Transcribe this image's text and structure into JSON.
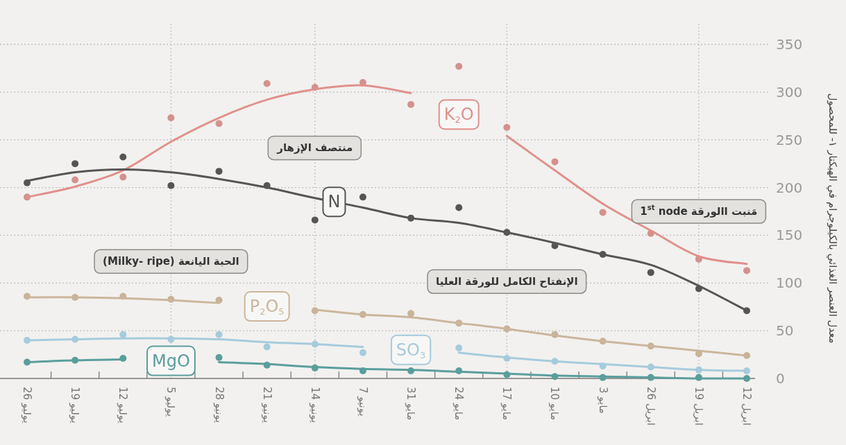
{
  "chart_data": {
    "type": "line",
    "ylabel": "معدل العنصر الغذائي بالكيلوجرام في الهيكتار ١- للمحصول",
    "categories": [
      "26 يوليو",
      "19 يوليو",
      "12 يوليو",
      "5 يوليو",
      "28 يونيو",
      "21 يونيو",
      "14 يونيو",
      "7 يونيو",
      "31 مايو",
      "24 مايو",
      "17 مايو",
      "10 مايو",
      "3 مايو",
      "26 ابريل",
      "19 ابريل",
      "12 ابريل"
    ],
    "ylim": [
      0,
      350
    ],
    "yticks": [
      0,
      50,
      100,
      150,
      200,
      250,
      300,
      350
    ],
    "grid": "y",
    "series": [
      {
        "type": "scatter",
        "color": "#d4918e",
        "values": [
          190,
          208,
          211,
          273,
          267,
          309,
          305,
          310,
          287,
          327,
          263,
          227,
          174,
          152,
          125,
          113
        ]
      },
      {
        "type": "scatter",
        "color": "#555553",
        "values": [
          205,
          225,
          232,
          202,
          217,
          202,
          166,
          190,
          168,
          179,
          153,
          139,
          130,
          111,
          94,
          71
        ]
      },
      {
        "type": "scatter",
        "color": "#c8b298",
        "values": [
          86,
          85,
          86,
          83,
          82,
          null,
          71,
          67,
          68,
          58,
          52,
          46,
          39,
          34,
          26,
          24
        ]
      },
      {
        "type": "scatter",
        "color": "#a6cbdc",
        "values": [
          40,
          41,
          46,
          41,
          46,
          33,
          36,
          27,
          null,
          32,
          21,
          18,
          13,
          12,
          9,
          8
        ]
      },
      {
        "type": "scatter",
        "color": "#5a9e9c",
        "values": [
          17,
          19,
          21,
          null,
          22,
          14,
          11,
          8,
          8,
          8,
          4,
          2,
          1,
          1,
          1,
          0
        ]
      },
      {
        "name": "K$_{2}$O",
        "color": "#e0908c",
        "values": [
          190,
          201,
          218,
          248,
          273,
          292,
          303,
          307,
          299,
          null,
          254,
          218,
          183,
          155,
          128,
          120
        ]
      },
      {
        "name": "N",
        "color": "#555553",
        "values": [
          207,
          216,
          219,
          216,
          209,
          200,
          189,
          179,
          168,
          163,
          153,
          142,
          130,
          119,
          97,
          71
        ]
      },
      {
        "name": "P$_{2}$O$_{5}$",
        "color": "#cbb69c",
        "values": [
          85,
          85,
          84,
          82,
          79,
          null,
          72,
          67,
          64,
          58,
          52,
          45,
          39,
          34,
          29,
          24
        ]
      },
      {
        "name": "SO$_{3}$",
        "color": "#a6cbdc",
        "values": [
          40,
          41,
          42,
          42,
          41,
          38,
          36,
          33,
          null,
          27,
          22,
          18,
          15,
          12,
          9,
          8
        ]
      },
      {
        "name": "MgO",
        "color": "#5a9e9c",
        "values": [
          17,
          19,
          20,
          null,
          17,
          15,
          12,
          10,
          9,
          7,
          5,
          3,
          2,
          1,
          0,
          0
        ]
      }
    ],
    "ref_lines": [
      {
        "axis": "x",
        "value": "5 يوليو",
        "label": "الحبة اليانعة (Milky- ripe)",
        "color": "#c8c8c8",
        "line_style": "dotted"
      },
      {
        "axis": "x",
        "value": "14 يونيو",
        "label": "منتصف الإزهار",
        "color": "#c8c8c8",
        "line_style": "dotted"
      },
      {
        "axis": "x",
        "value": "17 مايو",
        "label": "الإنفتاح الكامل للورقة العليا",
        "color": "#c8c8c8",
        "line_style": "dotted"
      },
      {
        "axis": "x",
        "value": "19 ابريل",
        "label": "مَنبت االورقة 1$^{st}$ node",
        "color": "#c8c8c8",
        "line_style": "dotted"
      }
    ]
  }
}
